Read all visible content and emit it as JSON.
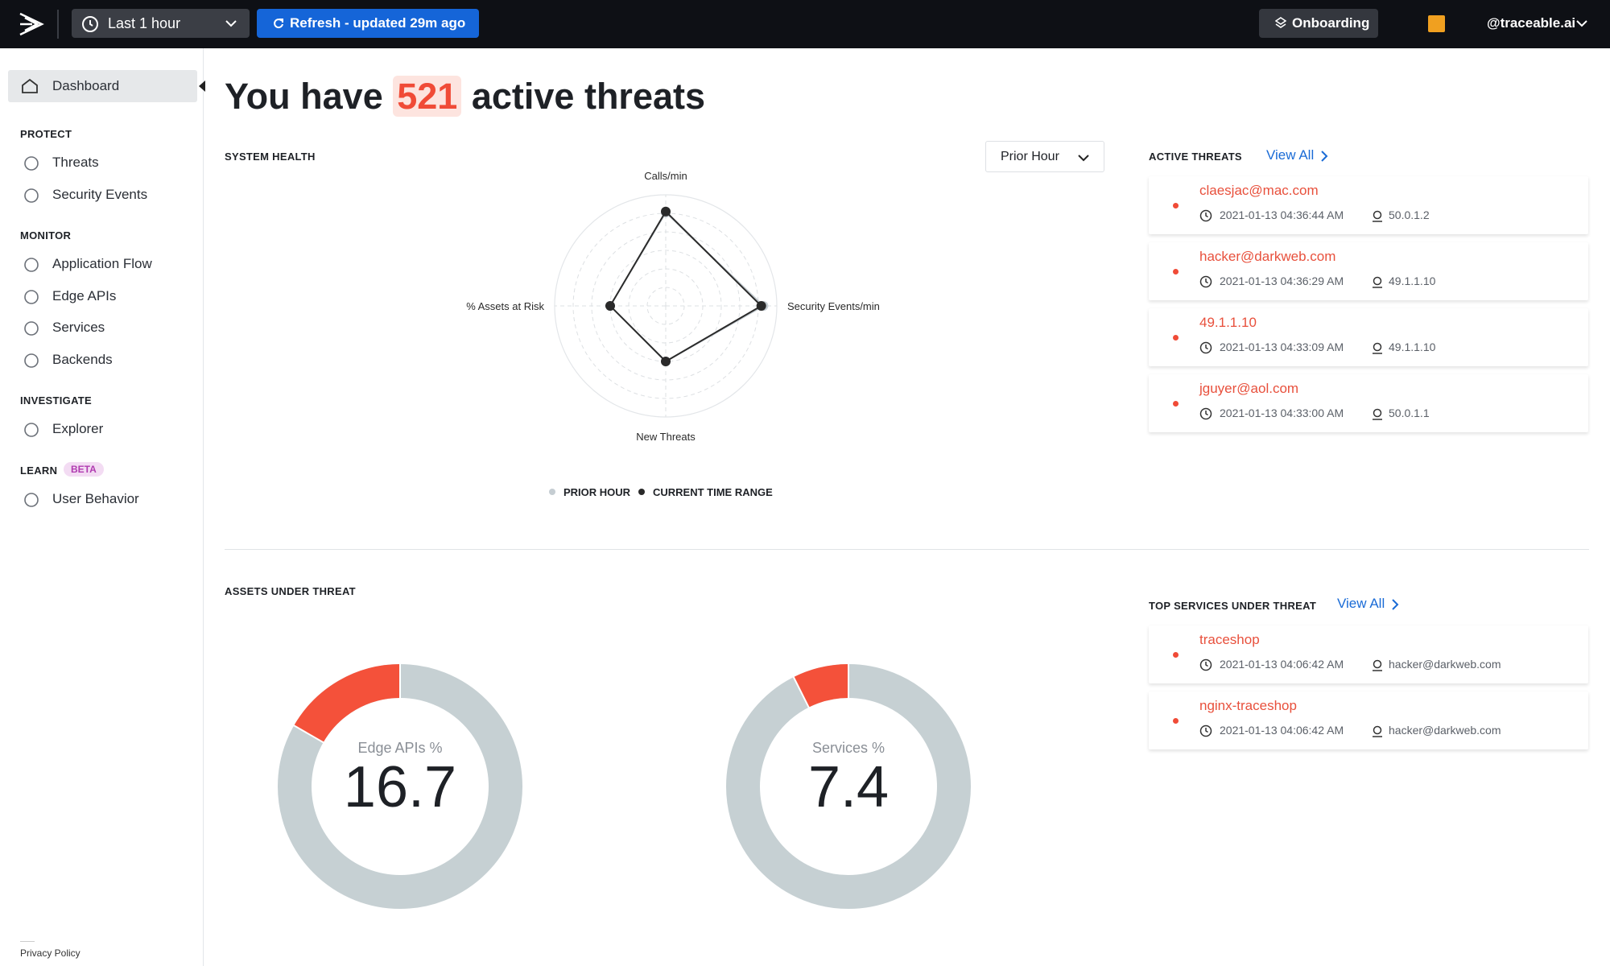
{
  "header": {
    "time_range": "Last 1 hour",
    "refresh": "Refresh - updated 29m ago",
    "onboarding": "Onboarding",
    "account": "@traceable.ai"
  },
  "sidebar": {
    "dashboard": "Dashboard",
    "groups": [
      {
        "title": "PROTECT",
        "items": [
          "Threats",
          "Security Events"
        ]
      },
      {
        "title": "MONITOR",
        "items": [
          "Application Flow",
          "Edge APIs",
          "Services",
          "Backends"
        ]
      },
      {
        "title": "INVESTIGATE",
        "items": [
          "Explorer"
        ]
      },
      {
        "title": "LEARN",
        "badge": "BETA",
        "items": [
          "User Behavior"
        ]
      }
    ],
    "footer": "Privacy Policy"
  },
  "headline": {
    "prefix": "You have",
    "count": 521,
    "suffix": "active threats"
  },
  "system_health": {
    "title": "SYSTEM HEALTH",
    "period": "Prior Hour",
    "chart_data": {
      "type": "radar",
      "categories": [
        "Calls/min",
        "Security Events/min",
        "New Threats",
        "% Assets at Risk"
      ],
      "rlim": [
        0,
        5
      ],
      "series": [
        {
          "name": "PRIOR HOUR",
          "color": "#c5cdd2",
          "values": [
            4.2,
            4.4,
            2.5,
            2.5
          ]
        },
        {
          "name": "CURRENT TIME RANGE",
          "color": "#2a2a2a",
          "values": [
            4.25,
            4.3,
            2.5,
            2.5
          ]
        }
      ]
    }
  },
  "active_threats": {
    "title": "ACTIVE THREATS",
    "view_all": "View All",
    "items": [
      {
        "name": "claesjac@mac.com",
        "time": "2021-01-13 04:36:44 AM",
        "ip": "50.0.1.2"
      },
      {
        "name": "hacker@darkweb.com",
        "time": "2021-01-13 04:36:29 AM",
        "ip": "49.1.1.10"
      },
      {
        "name": "49.1.1.10",
        "time": "2021-01-13 04:33:09 AM",
        "ip": "49.1.1.10"
      },
      {
        "name": "jguyer@aol.com",
        "time": "2021-01-13 04:33:00 AM",
        "ip": "50.0.1.1"
      }
    ]
  },
  "assets_under_threat": {
    "title": "ASSETS UNDER THREAT",
    "charts": [
      {
        "type": "donut",
        "label": "Edge APIs %",
        "value": 16.7,
        "color": "#f4513a",
        "track_color": "#c6d0d3"
      },
      {
        "type": "donut",
        "label": "Services %",
        "value": 7.4,
        "color": "#f4513a",
        "track_color": "#c6d0d3"
      }
    ]
  },
  "top_services": {
    "title": "TOP SERVICES UNDER THREAT",
    "view_all": "View All",
    "items": [
      {
        "name": "traceshop",
        "time": "2021-01-13 04:06:42 AM",
        "user": "hacker@darkweb.com"
      },
      {
        "name": "nginx-traceshop",
        "time": "2021-01-13 04:06:42 AM",
        "user": "hacker@darkweb.com"
      }
    ]
  }
}
